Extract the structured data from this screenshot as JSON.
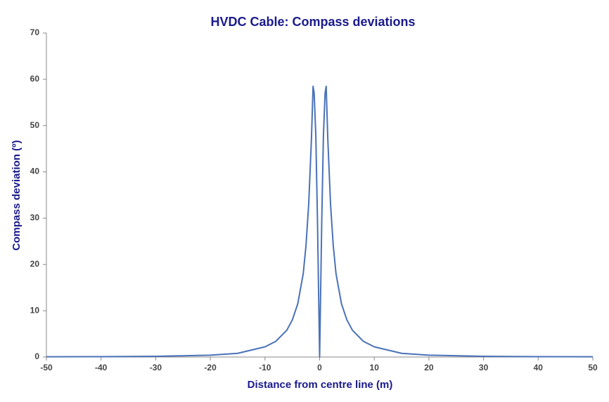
{
  "chart_data": {
    "type": "line",
    "title": "HVDC Cable: Compass deviations",
    "x_label": "Distance from centre line (m)",
    "y_label": "Compass deviation (º)",
    "x": [
      -50,
      -40,
      -30,
      -20,
      -15,
      -10,
      -8,
      -6,
      -5,
      -4,
      -3,
      -2.5,
      -2,
      -1.5,
      -1.2,
      -1,
      -0.7,
      -0.4,
      -0.2,
      0,
      0.2,
      0.4,
      0.7,
      1,
      1.2,
      1.5,
      2,
      2.5,
      3,
      4,
      5,
      6,
      8,
      10,
      15,
      20,
      30,
      40,
      50
    ],
    "series": [
      {
        "name": "Compass deviation",
        "color": "#4a72b8",
        "values": [
          0.05,
          0.08,
          0.15,
          0.4,
          0.8,
          2.2,
          3.4,
          5.8,
          8,
          11.5,
          18,
          24,
          33,
          47,
          58.5,
          57,
          48,
          30,
          15,
          0,
          15,
          30,
          48,
          57,
          58.5,
          47,
          33,
          24,
          18,
          11.5,
          8,
          5.8,
          3.4,
          2.2,
          0.8,
          0.4,
          0.15,
          0.08,
          0.05
        ]
      }
    ],
    "xlim": [
      -50,
      50
    ],
    "xticks": [
      -50,
      -40,
      -30,
      -20,
      -10,
      0,
      10,
      20,
      30,
      40,
      50
    ],
    "ylim": [
      0,
      70
    ],
    "yticks": [
      0,
      10,
      20,
      30,
      40,
      50,
      60,
      70
    ],
    "grid": false
  }
}
